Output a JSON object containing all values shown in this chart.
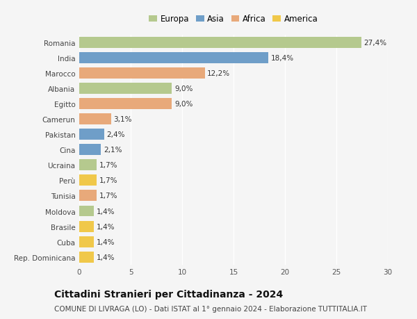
{
  "title": "Cittadini Stranieri per Cittadinanza - 2024",
  "subtitle": "COMUNE DI LIVRAGA (LO) - Dati ISTAT al 1° gennaio 2024 - Elaborazione TUTTITALIA.IT",
  "countries": [
    "Romania",
    "India",
    "Marocco",
    "Albania",
    "Egitto",
    "Camerun",
    "Pakistan",
    "Cina",
    "Ucraina",
    "Perù",
    "Tunisia",
    "Moldova",
    "Brasile",
    "Cuba",
    "Rep. Dominicana"
  ],
  "values": [
    27.4,
    18.4,
    12.2,
    9.0,
    9.0,
    3.1,
    2.4,
    2.1,
    1.7,
    1.7,
    1.7,
    1.4,
    1.4,
    1.4,
    1.4
  ],
  "labels": [
    "27,4%",
    "18,4%",
    "12,2%",
    "9,0%",
    "9,0%",
    "3,1%",
    "2,4%",
    "2,1%",
    "1,7%",
    "1,7%",
    "1,7%",
    "1,4%",
    "1,4%",
    "1,4%",
    "1,4%"
  ],
  "continents": [
    "Europa",
    "Asia",
    "Africa",
    "Europa",
    "Africa",
    "Africa",
    "Asia",
    "Asia",
    "Europa",
    "America",
    "Africa",
    "Europa",
    "America",
    "America",
    "America"
  ],
  "continent_colors": {
    "Europa": "#b5c98e",
    "Asia": "#6f9ec8",
    "Africa": "#e8a97a",
    "America": "#f0c84a"
  },
  "legend_order": [
    "Europa",
    "Asia",
    "Africa",
    "America"
  ],
  "xlim": [
    0,
    30
  ],
  "xticks": [
    0,
    5,
    10,
    15,
    20,
    25,
    30
  ],
  "background_color": "#f5f5f5",
  "bar_height": 0.72,
  "label_fontsize": 7.5,
  "title_fontsize": 10,
  "subtitle_fontsize": 7.5,
  "ytick_fontsize": 7.5,
  "xtick_fontsize": 7.5,
  "legend_fontsize": 8.5
}
